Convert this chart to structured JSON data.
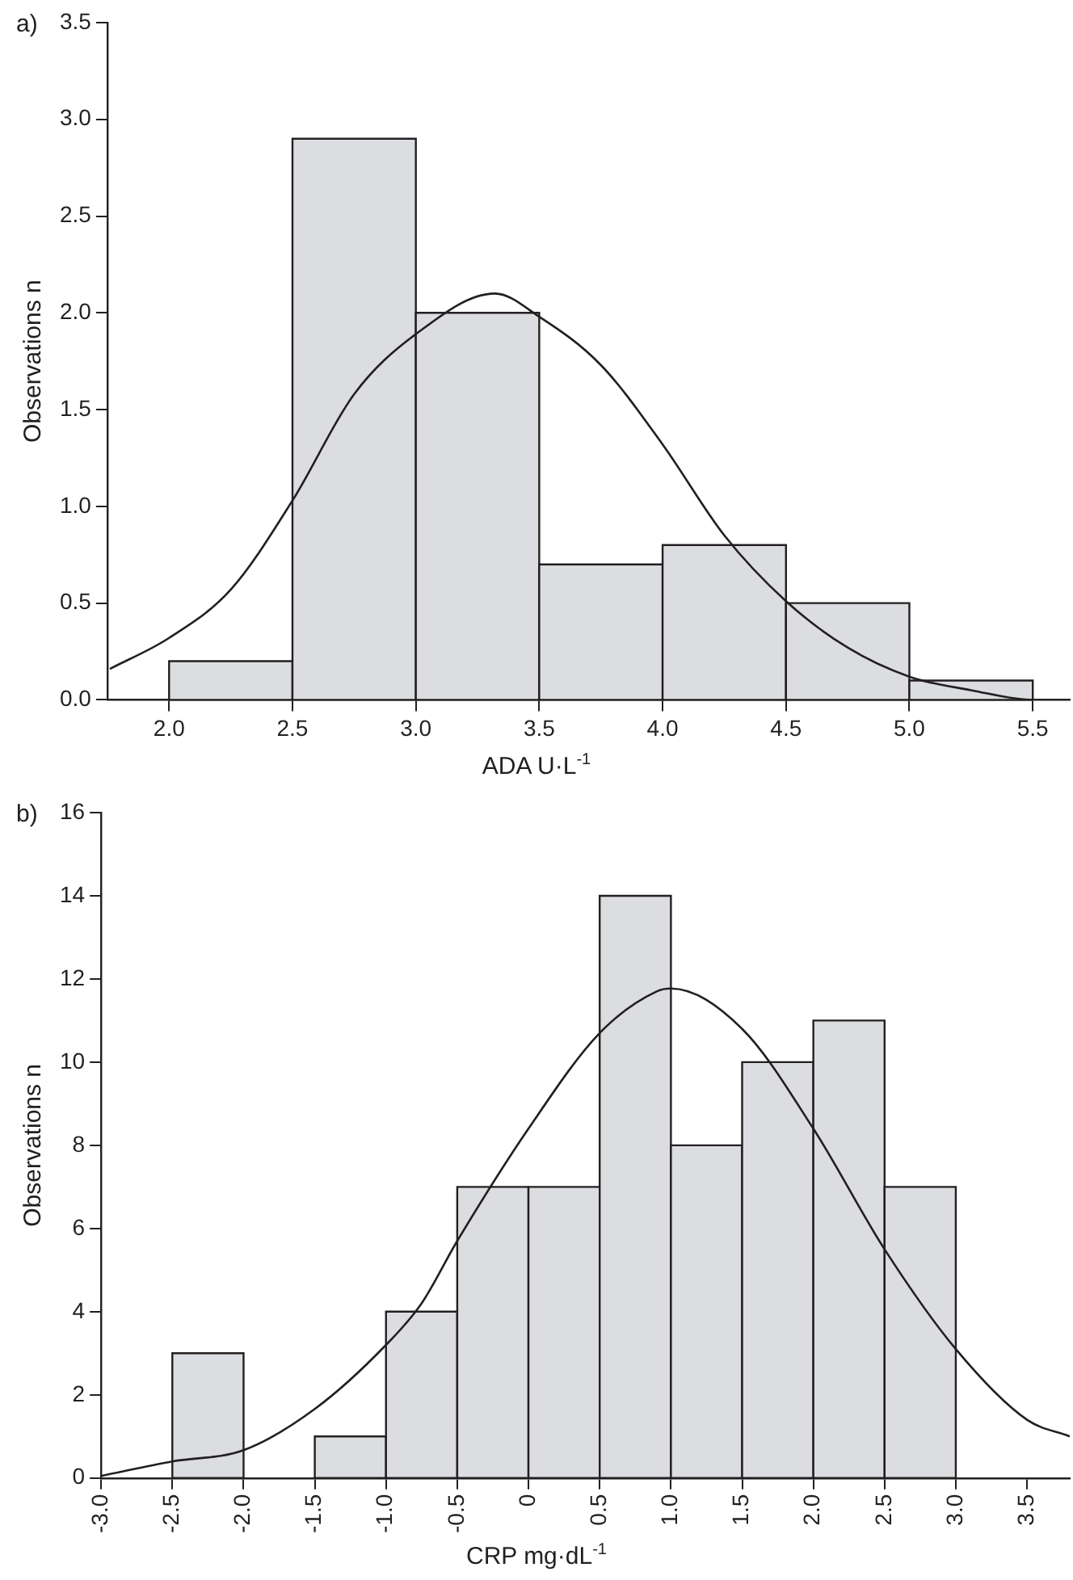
{
  "chart_data": [
    {
      "type": "histogram",
      "xlabel": "ADA U·L$^{-1}$",
      "ylabel": "Observations n",
      "annotations": [
        "a)"
      ],
      "grid": false,
      "legend": false,
      "xlim": [
        1.75,
        5.65
      ],
      "xticks": [
        {
          "value": 2,
          "label": "2.0"
        },
        2.5,
        {
          "value": 3,
          "label": "3.0"
        },
        3.5,
        {
          "value": 4,
          "label": "4.0"
        },
        4.5,
        {
          "value": 5,
          "label": "5.0"
        },
        5.5
      ],
      "ylim": [
        0,
        3.5
      ],
      "yticks": [
        {
          "value": 0,
          "label": "0.0"
        },
        0.5,
        {
          "value": 1,
          "label": "1.0"
        },
        1.5,
        {
          "value": 2,
          "label": "2.0"
        },
        2.5,
        {
          "value": 3,
          "label": "3.0"
        },
        3.5
      ],
      "series": [
        {
          "color": "#dcdde0",
          "bins": [
            2,
            2.5,
            3,
            3.5,
            4,
            4.5,
            5,
            5.5
          ],
          "values": [
            0.2,
            2.9,
            2.0,
            0.7,
            0.8,
            0.5,
            0.1
          ]
        },
        {
          "type": "line",
          "color": "#231f20",
          "marker": "none",
          "x": [
            1.76,
            2.0,
            2.25,
            2.5,
            2.75,
            3.0,
            3.32,
            3.5,
            3.75,
            4.0,
            4.25,
            4.5,
            4.75,
            5.0,
            5.25,
            5.5,
            5.62
          ],
          "values": [
            0.16,
            0.32,
            0.57,
            1.03,
            1.58,
            1.89,
            2.1,
            1.98,
            1.73,
            1.32,
            0.85,
            0.51,
            0.27,
            0.12,
            0.05,
            0.0,
            0.0
          ]
        }
      ]
    },
    {
      "type": "histogram",
      "xlabel": "CRP mg·dL$^{-1}$",
      "ylabel": "Observations n",
      "annotations": [
        "b)"
      ],
      "grid": false,
      "legend": false,
      "xlim": [
        -3.0,
        3.8
      ],
      "xticks": [
        {
          "value": -3,
          "label": "-3.0"
        },
        -2.5,
        {
          "value": -2,
          "label": "-2.0"
        },
        -1.5,
        {
          "value": -1,
          "label": "-1.0"
        },
        -0.5,
        0,
        0.5,
        {
          "value": 1,
          "label": "1.0"
        },
        1.5,
        {
          "value": 2,
          "label": "2.0"
        },
        2.5,
        {
          "value": 3,
          "label": "3.0"
        },
        3.5
      ],
      "ylim": [
        0,
        16
      ],
      "yticks": [
        0,
        2,
        4,
        6,
        8,
        10,
        12,
        14,
        16
      ],
      "series": [
        {
          "color": "#dcdde0",
          "bins": [
            -3,
            -2.5,
            -2,
            -1.5,
            -1,
            -0.5,
            0,
            0.5,
            1,
            1.5,
            2,
            2.5,
            3
          ],
          "values": [
            0,
            3,
            0,
            1,
            4,
            7,
            7,
            14,
            8,
            10,
            11,
            7
          ]
        },
        {
          "type": "line",
          "color": "#231f20",
          "marker": "none",
          "x": [
            -3.0,
            -2.5,
            -2.0,
            -1.5,
            -1.0,
            -0.75,
            -0.5,
            0,
            0.5,
            0.9,
            1.0,
            1.5,
            2.0,
            2.5,
            3.0,
            3.5,
            3.8
          ],
          "values": [
            0.05,
            0.4,
            0.67,
            1.66,
            3.2,
            4.2,
            5.7,
            8.4,
            10.7,
            11.7,
            11.77,
            10.8,
            8.4,
            5.5,
            3.1,
            1.4,
            1.0
          ]
        }
      ]
    }
  ]
}
